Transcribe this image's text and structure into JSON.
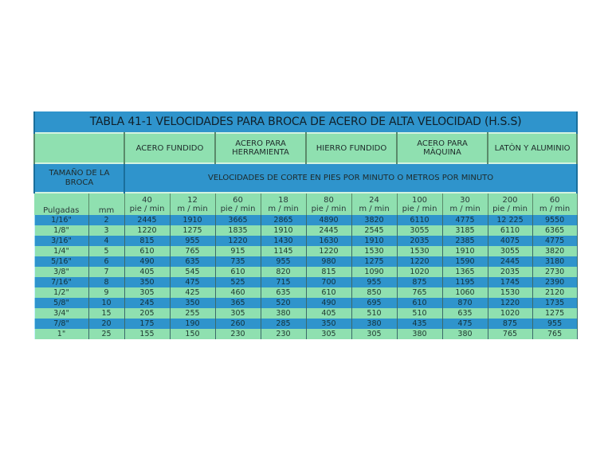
{
  "table": {
    "title": "TABLA 41-1 VELOCIDADES PARA BROCA DE ACERO DE ALTA VELOCIDAD (H.S.S)",
    "materials": [
      "ACERO FUNDIDO",
      "ACERO PARA HERRAMIENTA",
      "HIERRO FUNDIDO",
      "ACERO PARA MÀQUINA",
      "LATÒN Y ALUMINIO"
    ],
    "size_label": "TAMAÑO DE LA BROCA",
    "speeds_label": "VELOCIDADES DE CORTE EN PIES POR MINUTO O METROS POR MINUTO",
    "col_headers": {
      "pulgadas": "Pulgadas",
      "mm": "mm",
      "units": [
        {
          "value": "40",
          "unit": "pie / min"
        },
        {
          "value": "12",
          "unit": "m / min"
        },
        {
          "value": "60",
          "unit": "pie / min"
        },
        {
          "value": "18",
          "unit": "m / min"
        },
        {
          "value": "80",
          "unit": "pie / min"
        },
        {
          "value": "24",
          "unit": "m / min"
        },
        {
          "value": "100",
          "unit": "pie / min"
        },
        {
          "value": "30",
          "unit": "m / min"
        },
        {
          "value": "200",
          "unit": "pie / min"
        },
        {
          "value": "60",
          "unit": "m / min"
        }
      ]
    },
    "rows": [
      [
        "1/16\"",
        "2",
        "2445",
        "1910",
        "3665",
        "2865",
        "4890",
        "3820",
        "6110",
        "4775",
        "12 225",
        "9550"
      ],
      [
        "1/8\"",
        "3",
        "1220",
        "1275",
        "1835",
        "1910",
        "2445",
        "2545",
        "3055",
        "3185",
        "6110",
        "6365"
      ],
      [
        "3/16\"",
        "4",
        "815",
        "955",
        "1220",
        "1430",
        "1630",
        "1910",
        "2035",
        "2385",
        "4075",
        "4775"
      ],
      [
        "1/4\"",
        "5",
        "610",
        "765",
        "915",
        "1145",
        "1220",
        "1530",
        "1530",
        "1910",
        "3055",
        "3820"
      ],
      [
        "5/16\"",
        "6",
        "490",
        "635",
        "735",
        "955",
        "980",
        "1275",
        "1220",
        "1590",
        "2445",
        "3180"
      ],
      [
        "3/8\"",
        "7",
        "405",
        "545",
        "610",
        "820",
        "815",
        "1090",
        "1020",
        "1365",
        "2035",
        "2730"
      ],
      [
        "7/16\"",
        "8",
        "350",
        "475",
        "525",
        "715",
        "700",
        "955",
        "875",
        "1195",
        "1745",
        "2390"
      ],
      [
        "1/2\"",
        "9",
        "305",
        "425",
        "460",
        "635",
        "610",
        "850",
        "765",
        "1060",
        "1530",
        "2120"
      ],
      [
        "5/8\"",
        "10",
        "245",
        "350",
        "365",
        "520",
        "490",
        "695",
        "610",
        "870",
        "1220",
        "1735"
      ],
      [
        "3/4\"",
        "15",
        "205",
        "255",
        "305",
        "380",
        "405",
        "510",
        "510",
        "635",
        "1020",
        "1275"
      ],
      [
        "7/8\"",
        "20",
        "175",
        "190",
        "260",
        "285",
        "350",
        "380",
        "435",
        "475",
        "875",
        "955"
      ],
      [
        "1\"",
        "25",
        "155",
        "150",
        "230",
        "230",
        "305",
        "305",
        "380",
        "380",
        "765",
        "765"
      ]
    ]
  },
  "colors": {
    "blue": "#2f94cc",
    "green": "#8fe0b0"
  }
}
